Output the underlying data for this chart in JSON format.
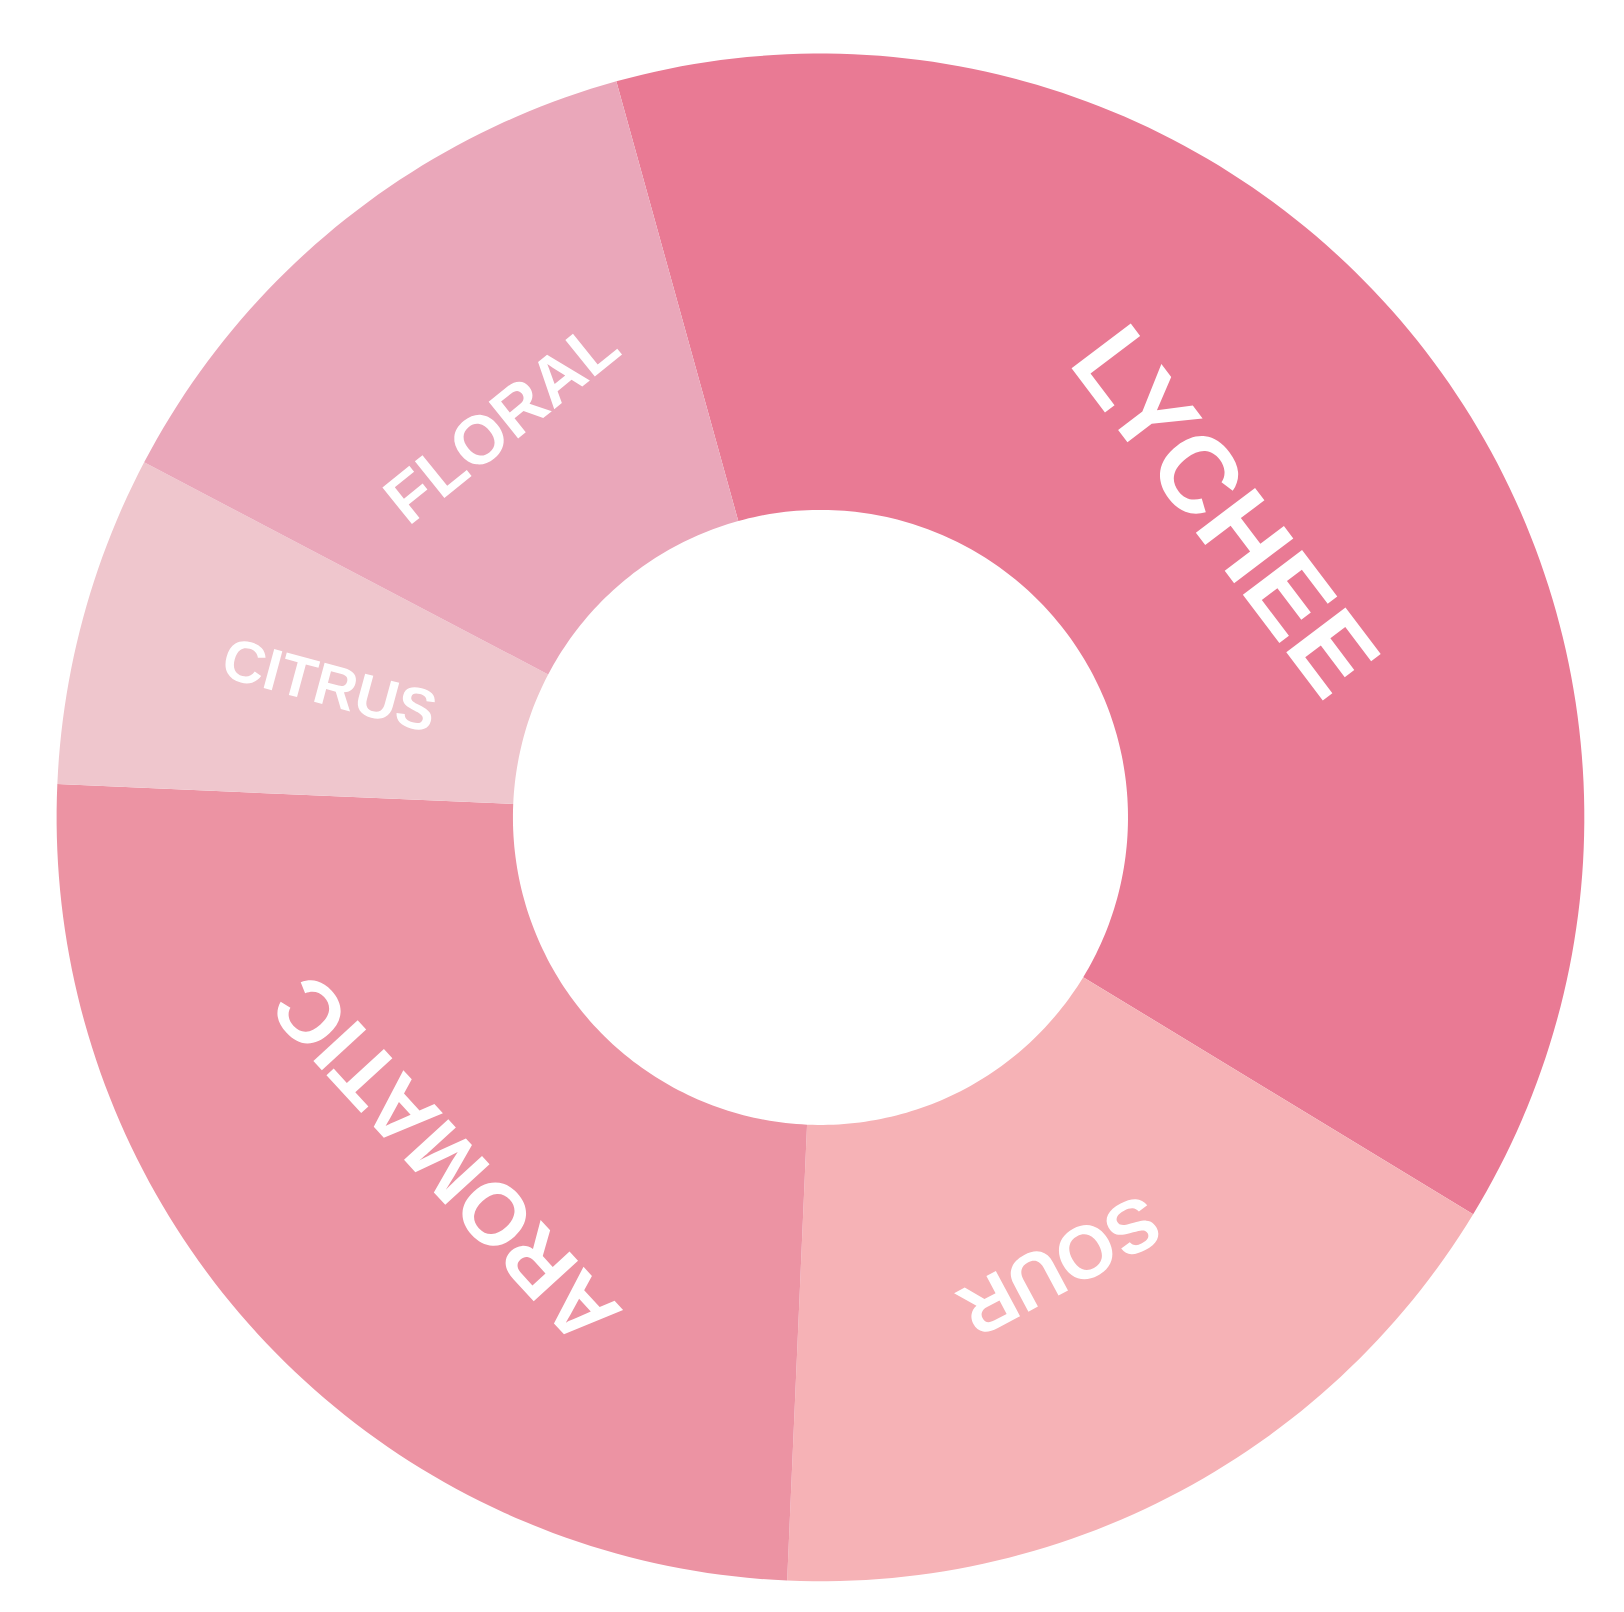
{
  "chart_data": {
    "type": "donut",
    "categories": [
      "LYCHEE",
      "SOUR",
      "AROMATIC",
      "CITRUS",
      "FLORAL"
    ],
    "values": [
      38,
      17,
      25,
      7,
      13
    ],
    "colors": [
      "#e97a94",
      "#f6b2b6",
      "#ec93a3",
      "#efc6cd",
      "#eaa7ba"
    ]
  }
}
